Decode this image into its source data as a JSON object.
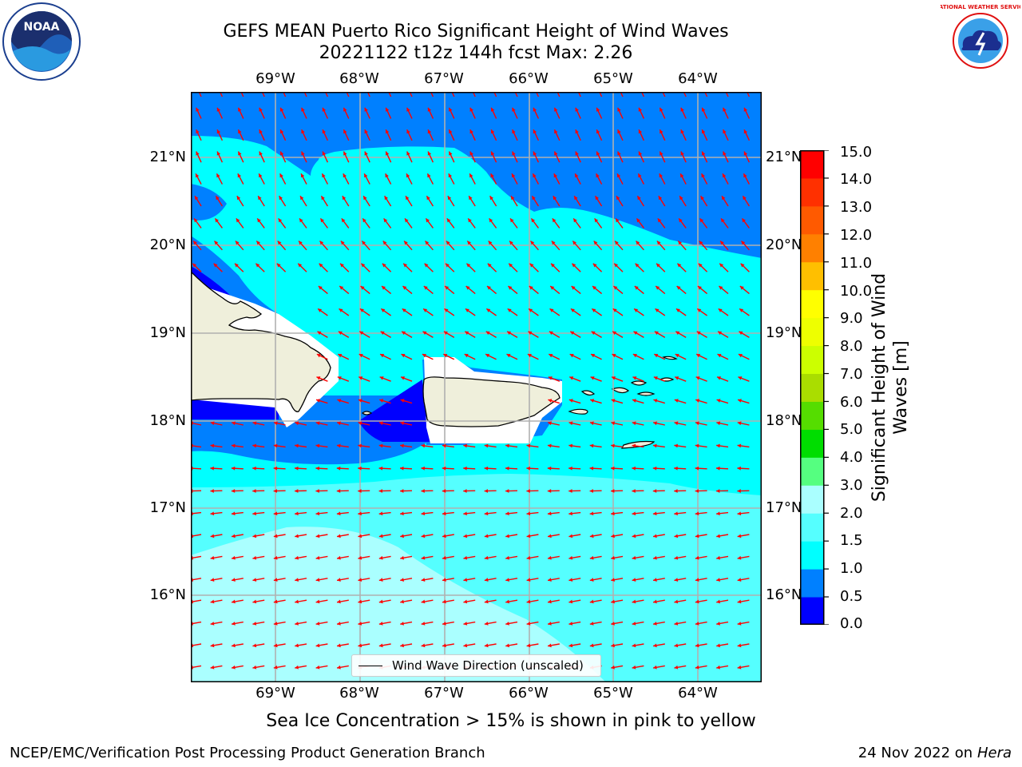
{
  "title": {
    "line1": "GEFS MEAN Puerto Rico Significant Height of Wind Waves",
    "line2": "20221122 t12z 144h fcst   Max: 2.26"
  },
  "map": {
    "lon_ticks_top": [
      "69°W",
      "68°W",
      "67°W",
      "66°W",
      "65°W",
      "64°W"
    ],
    "lon_ticks_bottom": [
      "69°W",
      "68°W",
      "67°W",
      "66°W",
      "65°W",
      "64°W"
    ],
    "lat_ticks_left": [
      "21°N",
      "20°N",
      "19°N",
      "18°N",
      "17°N",
      "16°N"
    ],
    "lat_ticks_right": [
      "21°N",
      "20°N",
      "19°N",
      "18°N",
      "17°N",
      "16°N"
    ],
    "extent": {
      "lon": [
        -70,
        -63.25
      ],
      "lat": [
        15,
        21.75
      ]
    },
    "arrow_color": "#ff0000",
    "land_color": "#efefdb",
    "legend_label": "Wind Wave Direction (unscaled)"
  },
  "colorbar": {
    "label": "Significant Height of Wind Waves [m]",
    "ticks": [
      "15.0",
      "14.0",
      "13.0",
      "12.0",
      "11.0",
      "10.0",
      "9.0",
      "8.0",
      "7.0",
      "6.0",
      "5.0",
      "4.0",
      "3.0",
      "2.0",
      "1.5",
      "1.0",
      "0.5",
      "0.0"
    ],
    "colors": [
      "#0000ff",
      "#0080ff",
      "#00ffff",
      "#55ffff",
      "#aaffff",
      "#55ff80",
      "#00dd00",
      "#55dd00",
      "#aadd00",
      "#ccff00",
      "#eeff00",
      "#ffff00",
      "#ffbf00",
      "#ff8000",
      "#ff5a00",
      "#ff3000",
      "#ff0000"
    ]
  },
  "note": "Sea Ice Concentration > 15% is shown in pink to yellow",
  "footer": {
    "left": "NCEP/EMC/Verification Post Processing Product Generation Branch",
    "right_date": "24 Nov 2022 on",
    "right_host": "Hera"
  },
  "logos": {
    "noaa": "NOAA",
    "nws": "NATIONAL WEATHER SERVICE"
  }
}
